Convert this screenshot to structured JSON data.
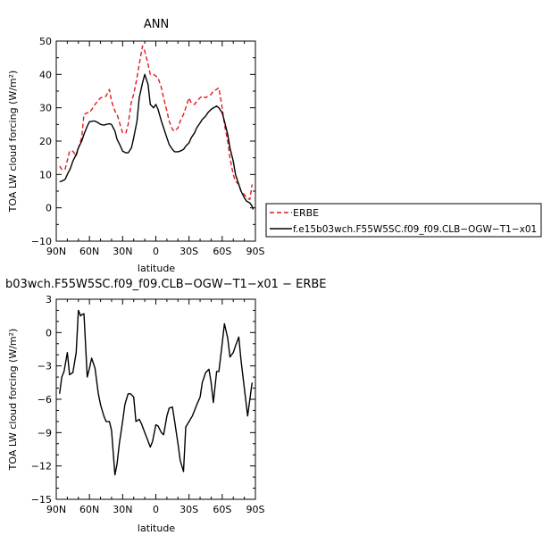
{
  "chart_data": [
    {
      "type": "line",
      "title": "ANN",
      "xlabel": "latitude",
      "ylabel": "TOA LW cloud forcing (W/m²)",
      "xlim": [
        90,
        -90
      ],
      "ylim": [
        -10,
        50
      ],
      "x_ticks": [
        90,
        60,
        30,
        0,
        -30,
        -60,
        -90
      ],
      "x_tick_labels": [
        "90N",
        "60N",
        "30N",
        "0",
        "30S",
        "60S",
        "90S"
      ],
      "y_ticks": [
        -10,
        0,
        10,
        20,
        30,
        40,
        50
      ],
      "y_tick_labels": [
        "−10",
        "0",
        "10",
        "20",
        "30",
        "40",
        "50"
      ],
      "legend_position": "right",
      "series": [
        {
          "name": "ERBE",
          "color": "#e41a1c",
          "dash": true,
          "x": [
            87,
            85,
            82,
            78,
            75,
            72,
            70,
            67,
            65,
            62,
            60,
            57,
            55,
            50,
            45,
            42,
            40,
            37,
            35,
            30,
            27,
            25,
            22,
            20,
            17,
            15,
            12,
            10,
            7,
            5,
            2,
            0,
            -2,
            -5,
            -7,
            -10,
            -12,
            -15,
            -17,
            -20,
            -22,
            -25,
            -27,
            -30,
            -32,
            -35,
            -37,
            -40,
            -42,
            -45,
            -47,
            -50,
            -52,
            -55,
            -57,
            -60,
            -62,
            -65,
            -67,
            -70,
            -72,
            -75,
            -77,
            -80,
            -82,
            -85,
            -87
          ],
          "values": [
            12.5,
            11.5,
            11.5,
            17,
            17,
            15.5,
            18,
            21,
            28,
            28.5,
            28.5,
            30,
            31,
            33,
            33.5,
            35.5,
            32,
            29,
            28,
            22.5,
            22.5,
            25,
            32,
            34,
            39,
            43,
            48.5,
            47,
            43,
            40,
            40,
            39.5,
            39,
            36,
            33,
            29,
            26,
            23.5,
            23,
            24,
            26,
            28,
            30,
            33,
            31.5,
            31,
            32,
            33,
            33.5,
            33,
            33.5,
            34,
            35,
            35.5,
            36,
            30,
            25,
            20,
            15,
            10,
            8,
            7,
            5,
            4,
            3,
            2.5,
            7
          ]
        },
        {
          "name": "f.e15b03wch.F55W5SC.f09_f09.CLB−OGW−T1−x01",
          "color": "#000000",
          "dash": false,
          "x": [
            87,
            85,
            82,
            80,
            77,
            75,
            72,
            70,
            67,
            65,
            62,
            60,
            57,
            55,
            52,
            50,
            47,
            45,
            42,
            40,
            37,
            35,
            32,
            30,
            27,
            25,
            22,
            20,
            17,
            15,
            12,
            10,
            7,
            5,
            2,
            0,
            -2,
            -5,
            -7,
            -10,
            -12,
            -15,
            -17,
            -20,
            -22,
            -25,
            -27,
            -30,
            -32,
            -35,
            -37,
            -40,
            -42,
            -45,
            -47,
            -50,
            -52,
            -55,
            -57,
            -60,
            -62,
            -65,
            -67,
            -70,
            -72,
            -75,
            -77,
            -80,
            -82,
            -85,
            -87,
            -88
          ],
          "values": [
            7.8,
            8,
            8.5,
            10,
            12,
            14,
            16,
            18,
            20,
            22,
            24.5,
            25.8,
            26,
            26,
            25.5,
            25,
            24.8,
            25,
            25.2,
            25,
            23,
            20.5,
            18.5,
            17,
            16.5,
            16.5,
            18,
            21,
            26,
            33,
            37.5,
            40,
            37,
            31,
            30,
            31,
            29.5,
            26,
            24,
            21,
            19,
            17.5,
            16.8,
            16.8,
            17,
            17.5,
            18.5,
            19.5,
            21,
            22.5,
            24,
            25.5,
            26.5,
            27.5,
            28.5,
            29.5,
            30,
            30.5,
            30,
            28.5,
            26,
            22,
            18,
            14,
            10,
            7,
            5,
            3,
            2,
            1.5,
            0.5,
            -0.5
          ]
        }
      ]
    },
    {
      "type": "line",
      "title": "b03wch.F55W5SC.f09_f09.CLB−OGW−T1−x01 − ERBE",
      "xlabel": "latitude",
      "ylabel": "TOA LW cloud forcing (W/m²)",
      "xlim": [
        90,
        -90
      ],
      "ylim": [
        -15,
        3
      ],
      "x_ticks": [
        90,
        60,
        30,
        0,
        -30,
        -60,
        -90
      ],
      "x_tick_labels": [
        "90N",
        "60N",
        "30N",
        "0",
        "30S",
        "60S",
        "90S"
      ],
      "y_ticks": [
        -15,
        -12,
        -9,
        -6,
        -3,
        0,
        3
      ],
      "y_tick_labels": [
        "−15",
        "−12",
        "−9",
        "−6",
        "−3",
        "0",
        "3"
      ],
      "series": [
        {
          "color": "#000000",
          "dash": false,
          "x": [
            87,
            85,
            83,
            80,
            78,
            75,
            72,
            70,
            68,
            67,
            65,
            62,
            60,
            58,
            55,
            52,
            50,
            47,
            45,
            42,
            40,
            37,
            35,
            33,
            30,
            28,
            26,
            25,
            23,
            20,
            18,
            15,
            13,
            10,
            8,
            5,
            3,
            0,
            -2,
            -5,
            -7,
            -10,
            -12,
            -15,
            -17,
            -20,
            -22,
            -25,
            -27,
            -30,
            -33,
            -35,
            -37,
            -40,
            -42,
            -45,
            -48,
            -50,
            -52,
            -55,
            -57,
            -60,
            -62,
            -65,
            -67,
            -70,
            -72,
            -75,
            -77,
            -80,
            -83,
            -85,
            -87
          ],
          "values": [
            -5.5,
            -4,
            -3.5,
            -1.8,
            -3.8,
            -3.6,
            -1.8,
            2,
            1.5,
            1.6,
            1.7,
            -4,
            -3.2,
            -2.3,
            -3.2,
            -5.5,
            -6.5,
            -7.5,
            -8,
            -8,
            -8.8,
            -12.8,
            -11.8,
            -10,
            -8,
            -6.5,
            -5.8,
            -5.5,
            -5.5,
            -5.8,
            -8,
            -7.8,
            -8.2,
            -9,
            -9.5,
            -10.3,
            -9.8,
            -8.3,
            -8.4,
            -9,
            -9.2,
            -7.5,
            -6.8,
            -6.7,
            -8,
            -10,
            -11.5,
            -12.5,
            -8.5,
            -8,
            -7.5,
            -7,
            -6.5,
            -5.8,
            -4.5,
            -3.6,
            -3.3,
            -4.5,
            -6.3,
            -3.5,
            -3.5,
            -1,
            0.8,
            -0.5,
            -2.2,
            -1.8,
            -1.2,
            -0.4,
            -2.5,
            -5,
            -7.5,
            -6,
            -4.5
          ]
        }
      ]
    }
  ]
}
